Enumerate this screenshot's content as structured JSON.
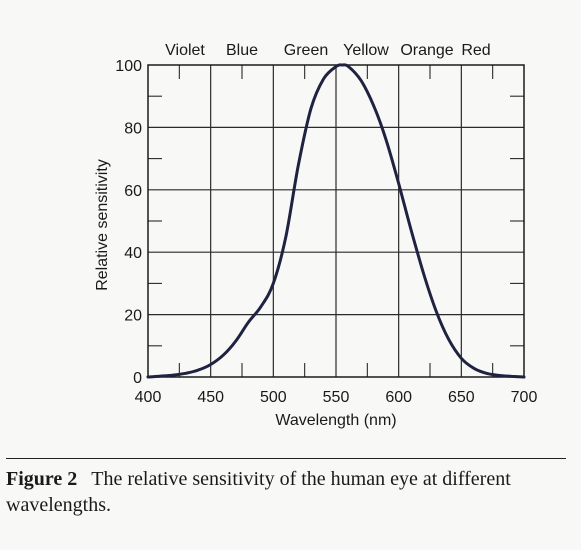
{
  "chart_data": {
    "type": "line",
    "title": "",
    "xlabel": "Wavelength (nm)",
    "ylabel": "Relative sensitivity",
    "xlim": [
      400,
      700
    ],
    "ylim": [
      0,
      100
    ],
    "xticks": [
      400,
      450,
      500,
      550,
      600,
      650,
      700
    ],
    "yticks": [
      0,
      20,
      40,
      60,
      80,
      100
    ],
    "grid": true,
    "color_bands": [
      "Violet",
      "Blue",
      "Green",
      "Yellow",
      "Orange",
      "Red"
    ],
    "series": [
      {
        "color": "#1f2240",
        "x": [
          400,
          410,
          420,
          430,
          440,
          450,
          460,
          470,
          480,
          490,
          500,
          510,
          520,
          530,
          540,
          550,
          555,
          560,
          570,
          580,
          590,
          600,
          610,
          620,
          630,
          640,
          650,
          660,
          670,
          680,
          690,
          700
        ],
        "y": [
          0.0,
          0.3,
          0.6,
          1.2,
          2.2,
          4.0,
          7.0,
          11.5,
          17.5,
          22.5,
          30.0,
          45.0,
          68.0,
          86.0,
          95.5,
          99.5,
          100.0,
          99.5,
          95.0,
          87.0,
          76.0,
          62.0,
          47.0,
          33.0,
          21.0,
          12.0,
          6.0,
          2.8,
          1.2,
          0.5,
          0.2,
          0.0
        ]
      }
    ]
  },
  "caption": {
    "label": "Figure 2",
    "text": "The relative sensitivity of the human eye at different wavelengths."
  }
}
